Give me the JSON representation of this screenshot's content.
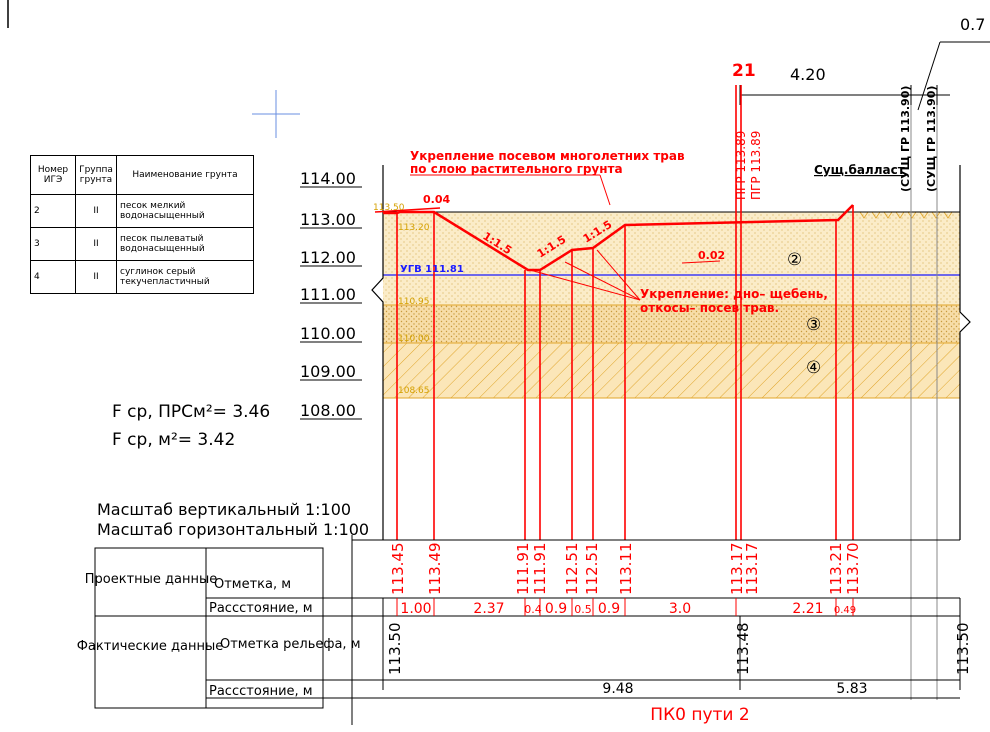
{
  "soil_table": {
    "headers": [
      "Номер ИГЭ",
      "Группа грунта",
      "Наименование грунта"
    ],
    "rows": [
      {
        "num": "2",
        "group": "II",
        "name": "песок мелкий водонасыщенный"
      },
      {
        "num": "3",
        "group": "II",
        "name": "песок пылеватый водонасыщенный"
      },
      {
        "num": "4",
        "group": "II",
        "name": "суглинок серый текучепластичный"
      }
    ]
  },
  "area_notes": {
    "prs": "F ср, ПРСм²= 3.46",
    "m2": "F ср, м²= 3.42"
  },
  "scales": {
    "vertical": "Масштаб вертикальный 1:100",
    "horizontal": "Масштаб горизонтальный 1:100"
  },
  "elevation_axis": [
    "114.00",
    "113.00",
    "112.00",
    "111.00",
    "110.00",
    "109.00",
    "108.00"
  ],
  "top_dims": {
    "station": "21",
    "width": "4.20",
    "offset": "0.7"
  },
  "annotations": {
    "seeding": [
      "Укрепление посевом многолетних трав",
      "по слою растительного грунта"
    ],
    "strengthening": [
      "Укрепление: дно– щебень,",
      "откосы– посев трав."
    ],
    "ballast": "Сущ.балласт",
    "pgr_a": "ПГР 113.89",
    "pgr_b": "ПГР 113.89",
    "sush_a": "(СУЩ ГР 113.90)",
    "sush_b": "(СУЩ ГР 113.90)",
    "ugv": "УГВ 111.81",
    "slope_003": "0.04",
    "slope_002": "0.02",
    "slopes": [
      "1:1.5",
      "1:1.5",
      "1:1.5"
    ],
    "layer_marks": [
      "113.50",
      "113.20",
      "110.95",
      "110.00",
      "108.65"
    ],
    "layer_nums": [
      "②",
      "③",
      "④"
    ]
  },
  "bottom_table": {
    "design_label": "Проектные данные",
    "design_elev_label": "Отметка, м",
    "design_dist_label": "Рассстояние, м",
    "actual_label": "Фактические данные",
    "actual_elev_label": "Отметка рельефа, м",
    "actual_dist_label": "Рассстояние, м",
    "design_elevations": [
      "113.45",
      "113.49",
      "111.91",
      "111.91",
      "112.51",
      "112.51",
      "113.11",
      "113.17",
      "113.17",
      "113.21",
      "113.70"
    ],
    "design_distances": [
      "1.00",
      "2.37",
      "0.4",
      "0.9",
      "0.5",
      "0.9",
      "3.0",
      "2.21",
      "0.49"
    ],
    "actual_elevations": [
      "113.50",
      "113.48",
      "113.50"
    ],
    "actual_distances": [
      "9.48",
      "5.83"
    ],
    "footer": "ПК0 пути 2"
  },
  "colors": {
    "red": "#ff0000",
    "blue": "#1a1aff",
    "sand": "#fbecc8",
    "loam": "#f7dda8",
    "orange": "#e8a418",
    "grey": "#888888"
  }
}
